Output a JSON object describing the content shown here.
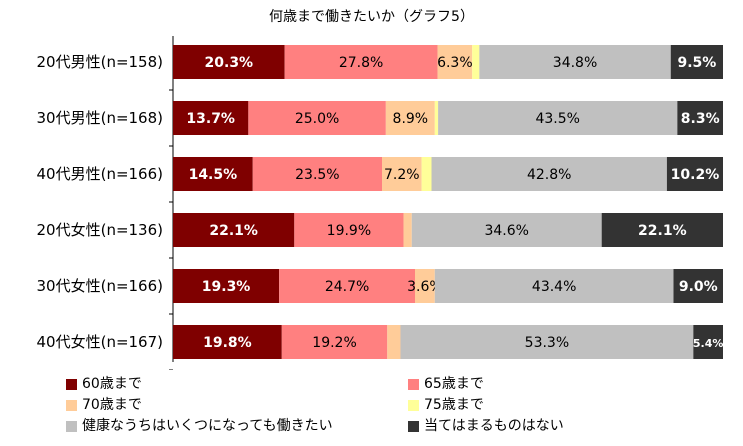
{
  "chart_data": {
    "type": "bar",
    "orientation": "horizontal",
    "stacked": true,
    "percent": true,
    "title": "何歳まで働きたいか（グラフ5）",
    "categories": [
      "20代男性(n=158)",
      "30代男性(n=168)",
      "40代男性(n=166)",
      "20代女性(n=136)",
      "30代女性(n=166)",
      "40代女性(n=167)"
    ],
    "series": [
      {
        "name": "60歳まで",
        "color": "#7f0000",
        "values": [
          20.3,
          13.7,
          14.5,
          22.1,
          19.3,
          19.8
        ]
      },
      {
        "name": "65歳まで",
        "color": "#ff8080",
        "values": [
          27.8,
          25.0,
          23.5,
          19.9,
          24.7,
          19.2
        ]
      },
      {
        "name": "70歳まで",
        "color": "#ffcc99",
        "values": [
          6.3,
          8.9,
          7.2,
          1.5,
          3.6,
          2.4
        ]
      },
      {
        "name": "75歳まで",
        "color": "#ffff99",
        "values": [
          1.3,
          0.6,
          1.8,
          0.0,
          0.0,
          0.0
        ]
      },
      {
        "name": "健康なうちはいくつになっても働きたい",
        "color": "#c0c0c0",
        "values": [
          34.8,
          43.5,
          42.8,
          34.6,
          43.4,
          53.3
        ]
      },
      {
        "name": "当てはまるものはない",
        "color": "#333333",
        "values": [
          9.5,
          8.3,
          10.2,
          22.1,
          9.0,
          5.4
        ]
      }
    ],
    "data_labels": [
      [
        "20.3%",
        "27.8%",
        "6.3%",
        "1.3%",
        "34.8%",
        "9.5%"
      ],
      [
        "13.7%",
        "25.0%",
        "8.9%",
        "0.6%",
        "43.5%",
        "8.3%"
      ],
      [
        "14.5%",
        "23.5%",
        "7.2%",
        "1.8%",
        "42.8%",
        "10.2%"
      ],
      [
        "22.1%",
        "19.9%",
        "1.5%",
        "",
        "34.6%",
        "22.1%"
      ],
      [
        "19.3%",
        "24.7%",
        "3.6%",
        "",
        "43.4%",
        "9.0%"
      ],
      [
        "19.8%",
        "19.2%",
        "2.4%",
        "",
        "53.3%",
        "5.4%"
      ]
    ],
    "legend_position": "bottom",
    "grid": false
  }
}
